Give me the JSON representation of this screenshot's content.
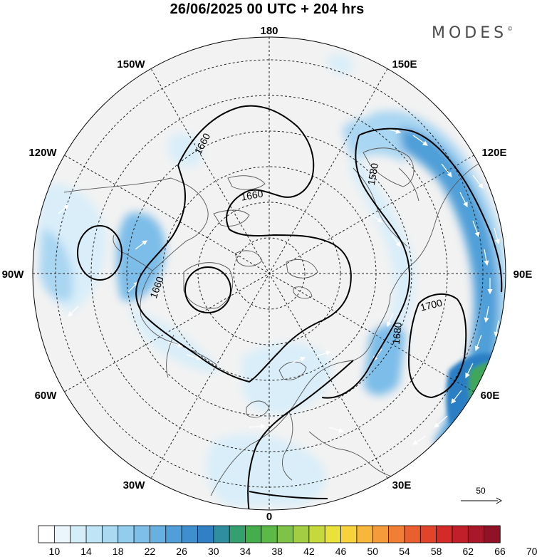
{
  "header": {
    "title": "26/06/2025  00 UTC  + 204 hrs",
    "brand": "MODES",
    "brand_mark": "©"
  },
  "map": {
    "projection": "north-polar-stereographic",
    "colors": {
      "land_outline": "#555555",
      "graticule": "#222222",
      "contour": "#000000",
      "shade_low": "#f2f2f2",
      "shade_10": "#d9eef9",
      "shade_14": "#a9d6f2",
      "shade_18": "#7cbde9",
      "shade_22": "#4f9fd8",
      "shade_high": "#2a7fc4",
      "shade_jet_green": "#3fa65a"
    },
    "longitude_labels": [
      {
        "name": "lon-180",
        "text": "180"
      },
      {
        "name": "lon-150e",
        "text": "150E"
      },
      {
        "name": "lon-120e",
        "text": "120E"
      },
      {
        "name": "lon-90e",
        "text": "90E"
      },
      {
        "name": "lon-60e",
        "text": "60E"
      },
      {
        "name": "lon-30e",
        "text": "30E"
      },
      {
        "name": "lon-0",
        "text": "0"
      },
      {
        "name": "lon-30w",
        "text": "30W"
      },
      {
        "name": "lon-60w",
        "text": "60W"
      },
      {
        "name": "lon-90w",
        "text": "90W"
      },
      {
        "name": "lon-120w",
        "text": "120W"
      },
      {
        "name": "lon-150w",
        "text": "150W"
      }
    ],
    "contour_labels": [
      "1660",
      "1660",
      "1660",
      "1580",
      "1680",
      "1700"
    ],
    "reference_vector": "50"
  },
  "colorbar": {
    "colors": [
      "#ffffff",
      "#eaf6fc",
      "#d4eef9",
      "#bfe4f6",
      "#a9daf2",
      "#93cdee",
      "#7dbfe8",
      "#67b1e2",
      "#519fd8",
      "#3f8ecd",
      "#2f80c4",
      "#2f8ea0",
      "#35a06f",
      "#44ad4c",
      "#5cb847",
      "#7ec348",
      "#a3ce44",
      "#c6d93c",
      "#e8e23a",
      "#f7d23b",
      "#f6b73b",
      "#f49c3a",
      "#f07e35",
      "#ea5f2f",
      "#e2442b",
      "#d42b29",
      "#c11f29",
      "#a9172a",
      "#8f1227"
    ],
    "tick_labels": [
      "10",
      "14",
      "18",
      "22",
      "26",
      "30",
      "34",
      "38",
      "42",
      "46",
      "50",
      "54",
      "58",
      "62",
      "66",
      "70"
    ]
  }
}
